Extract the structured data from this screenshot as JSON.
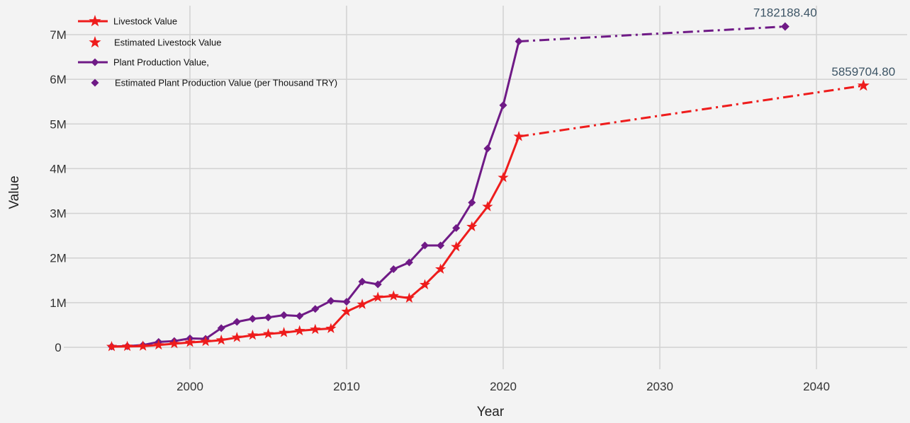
{
  "colors": {
    "livestock": "#ee1c1c",
    "plant": "#6f1a86",
    "grid": "#d2d2d2",
    "background": "#f3f3f3"
  },
  "chart_data": {
    "type": "line",
    "title": "",
    "xlabel": "Year",
    "ylabel": "Value",
    "xlim": [
      1992,
      2046
    ],
    "ylim": [
      -500000,
      7600000
    ],
    "xticks": [
      2000,
      2010,
      2020,
      2030,
      2040
    ],
    "xtick_labels": [
      "2000",
      "2010",
      "2020",
      "2030",
      "2040"
    ],
    "yticks": [
      0,
      1000000,
      2000000,
      3000000,
      4000000,
      5000000,
      6000000,
      7000000
    ],
    "ytick_labels": [
      "0",
      "1M",
      "2M",
      "3M",
      "4M",
      "5M",
      "6M",
      "7M"
    ],
    "grid": true,
    "legend_position": "top-left",
    "legend": [
      "Livestock Value",
      "Estimated Livestock Value",
      "Plant Production Value,",
      "Estimated Plant Production Value (per Thousand TRY)"
    ],
    "series": [
      {
        "name": "Livestock Value",
        "color_key": "livestock",
        "marker": "star",
        "x": [
          1995,
          1996,
          1997,
          1998,
          1999,
          2000,
          2001,
          2002,
          2003,
          2004,
          2005,
          2006,
          2007,
          2008,
          2009,
          2010,
          2011,
          2012,
          2013,
          2014,
          2015,
          2016,
          2017,
          2018,
          2019,
          2020,
          2021
        ],
        "y": [
          15000,
          20000,
          25000,
          50000,
          80000,
          110000,
          130000,
          160000,
          220000,
          270000,
          300000,
          330000,
          370000,
          400000,
          420000,
          800000,
          960000,
          1120000,
          1150000,
          1100000,
          1400000,
          1750000,
          2250000,
          2700000,
          3150000,
          3800000,
          4720000
        ]
      },
      {
        "name": "Estimated Livestock Value",
        "color_key": "livestock",
        "marker": "star",
        "x": [
          2021,
          2043
        ],
        "y": [
          4720000,
          5859704.8
        ]
      },
      {
        "name": "Plant Production Value,",
        "color_key": "plant",
        "marker": "diamond",
        "x": [
          1995,
          1996,
          1997,
          1998,
          1999,
          2000,
          2001,
          2002,
          2003,
          2004,
          2005,
          2006,
          2007,
          2008,
          2009,
          2010,
          2011,
          2012,
          2013,
          2014,
          2015,
          2016,
          2017,
          2018,
          2019,
          2020,
          2021
        ],
        "y": [
          20000,
          25000,
          50000,
          120000,
          140000,
          200000,
          190000,
          430000,
          570000,
          640000,
          670000,
          720000,
          700000,
          860000,
          1040000,
          1020000,
          1470000,
          1410000,
          1750000,
          1900000,
          2280000,
          2280000,
          2670000,
          3240000,
          4450000,
          5420000,
          6850000
        ]
      },
      {
        "name": "Estimated Plant Production Value (per Thousand TRY)",
        "color_key": "plant",
        "marker": "diamond",
        "x": [
          2021,
          2038
        ],
        "y": [
          6850000,
          7182188.4
        ]
      }
    ],
    "annotations": [
      {
        "text": "7182188.40",
        "x": 2038,
        "y": 7182188.4
      },
      {
        "text": "5859704.80",
        "x": 2043,
        "y": 5859704.8
      }
    ]
  }
}
